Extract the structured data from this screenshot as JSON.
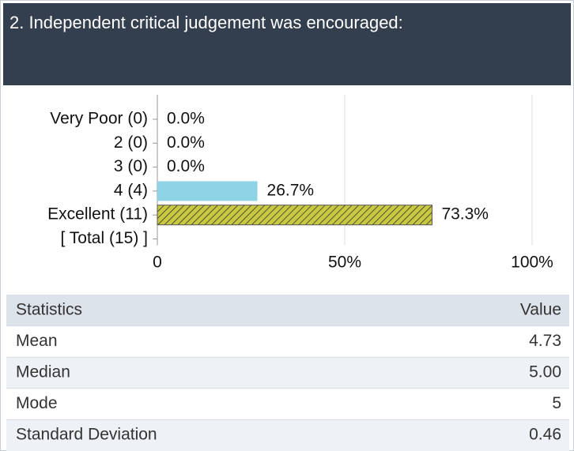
{
  "chart_data": {
    "type": "bar",
    "orientation": "horizontal",
    "title": "2. Independent critical judgement was encouraged:",
    "categories": [
      "Very Poor (0)",
      "2 (0)",
      "3 (0)",
      "4 (4)",
      "Excellent (11)"
    ],
    "total_label": "[ Total (15) ]",
    "values": [
      0,
      0,
      0,
      26.7,
      73.3
    ],
    "value_labels": [
      "0.0%",
      "0.0%",
      "0.0%",
      "26.7%",
      "73.3%"
    ],
    "colors": [
      "#8fd4e6",
      "#8fd4e6",
      "#8fd4e6",
      "#8fd4e6",
      "#c9c840"
    ],
    "hatched": [
      false,
      false,
      false,
      false,
      true
    ],
    "xlim": [
      0,
      100
    ],
    "xticks": [
      0,
      {
        "value": 50,
        "label": "50%"
      },
      {
        "value": 100,
        "label": "100%"
      }
    ],
    "grid": true
  },
  "table": {
    "header": [
      "Statistics",
      "Value"
    ],
    "rows": [
      [
        "Mean",
        "4.73"
      ],
      [
        "Median",
        "5.00"
      ],
      [
        "Mode",
        "5"
      ],
      [
        "Standard Deviation",
        "0.46"
      ]
    ]
  }
}
